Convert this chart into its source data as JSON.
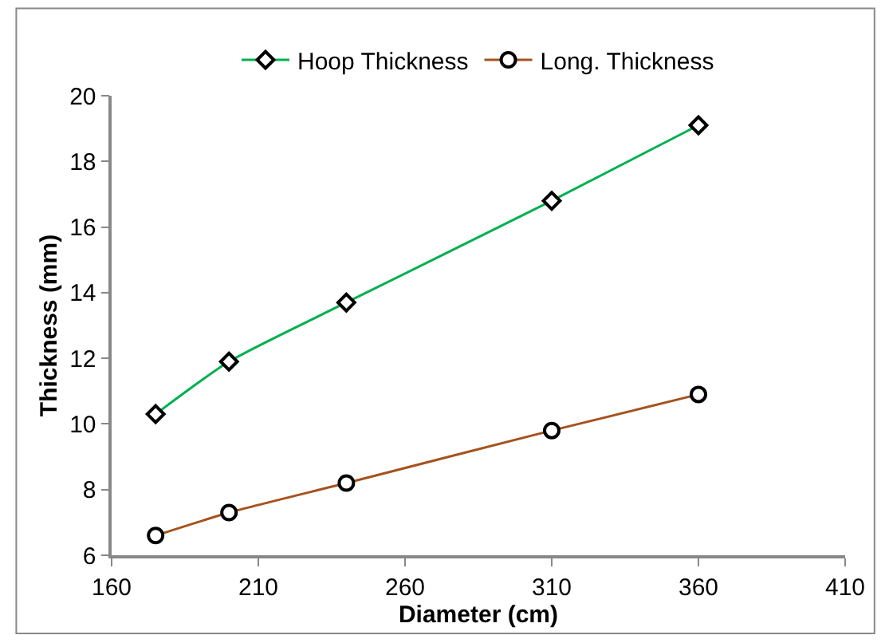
{
  "chart_data": {
    "type": "line",
    "xlabel": "Diameter (cm)",
    "ylabel": "Thickness (mm)",
    "x": [
      175,
      200,
      240,
      310,
      360
    ],
    "series": [
      {
        "name": "Hoop Thickness",
        "color": "#00b050",
        "marker": "diamond",
        "values": [
          10.3,
          11.9,
          13.7,
          16.8,
          19.1
        ]
      },
      {
        "name": "Long. Thickness",
        "color": "#a5521e",
        "marker": "circle",
        "values": [
          6.6,
          7.3,
          8.2,
          9.8,
          10.9
        ]
      }
    ],
    "xlim": [
      160,
      410
    ],
    "xticks": [
      160,
      210,
      260,
      310,
      360,
      410
    ],
    "ylim": [
      6,
      20
    ],
    "yticks": [
      6,
      8,
      10,
      12,
      14,
      16,
      18,
      20
    ],
    "legend": "top",
    "line_style": "solid"
  }
}
